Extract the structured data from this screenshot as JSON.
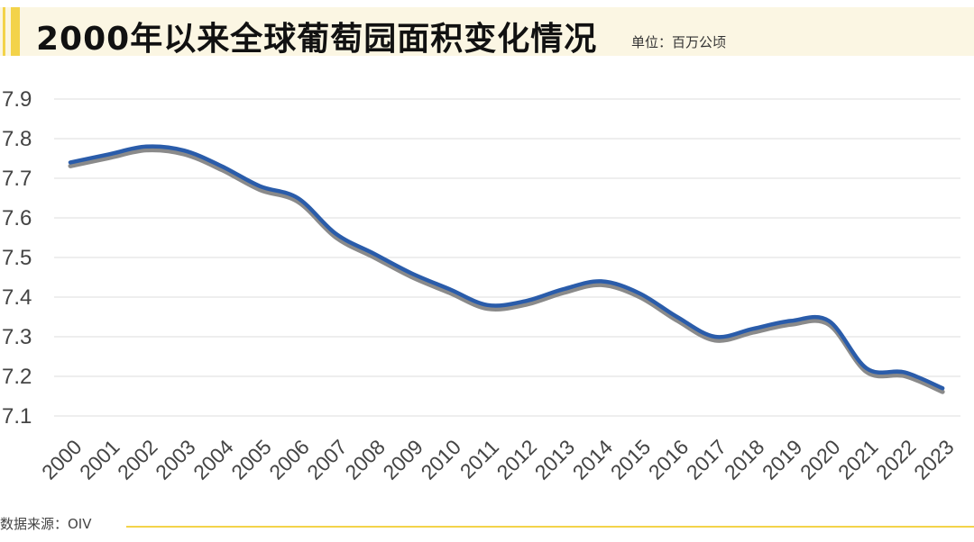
{
  "header": {
    "title": "2000年以来全球葡萄园面积变化情况",
    "unit": "单位：百万公顷"
  },
  "footer": {
    "source": "数据来源：OIV"
  },
  "colors": {
    "line": "#2a5caa",
    "shadow": "#8a8a8a",
    "accent": "#f3d34a",
    "band": "#fbf6e3",
    "grid": "#e3e3e3"
  },
  "chart_data": {
    "type": "line",
    "title": "2000年以来全球葡萄园面积变化情况",
    "xlabel": "",
    "ylabel": "",
    "unit": "百万公顷",
    "categories": [
      "2000",
      "2001",
      "2002",
      "2003",
      "2004",
      "2005",
      "2006",
      "2007",
      "2008",
      "2009",
      "2010",
      "2011",
      "2012",
      "2013",
      "2014",
      "2015",
      "2016",
      "2017",
      "2018",
      "2019",
      "2020",
      "2021",
      "2022",
      "2023"
    ],
    "values": [
      7.74,
      7.76,
      7.78,
      7.77,
      7.73,
      7.68,
      7.65,
      7.56,
      7.51,
      7.46,
      7.42,
      7.38,
      7.39,
      7.42,
      7.44,
      7.41,
      7.35,
      7.3,
      7.32,
      7.34,
      7.34,
      7.22,
      7.21,
      7.17
    ],
    "yticks": [
      "7.9",
      "7.8",
      "7.7",
      "7.6",
      "7.5",
      "7.4",
      "7.3",
      "7.2",
      "7.1"
    ],
    "ylim": [
      7.1,
      7.9
    ],
    "grid": true,
    "smooth": true,
    "legend": "none"
  }
}
